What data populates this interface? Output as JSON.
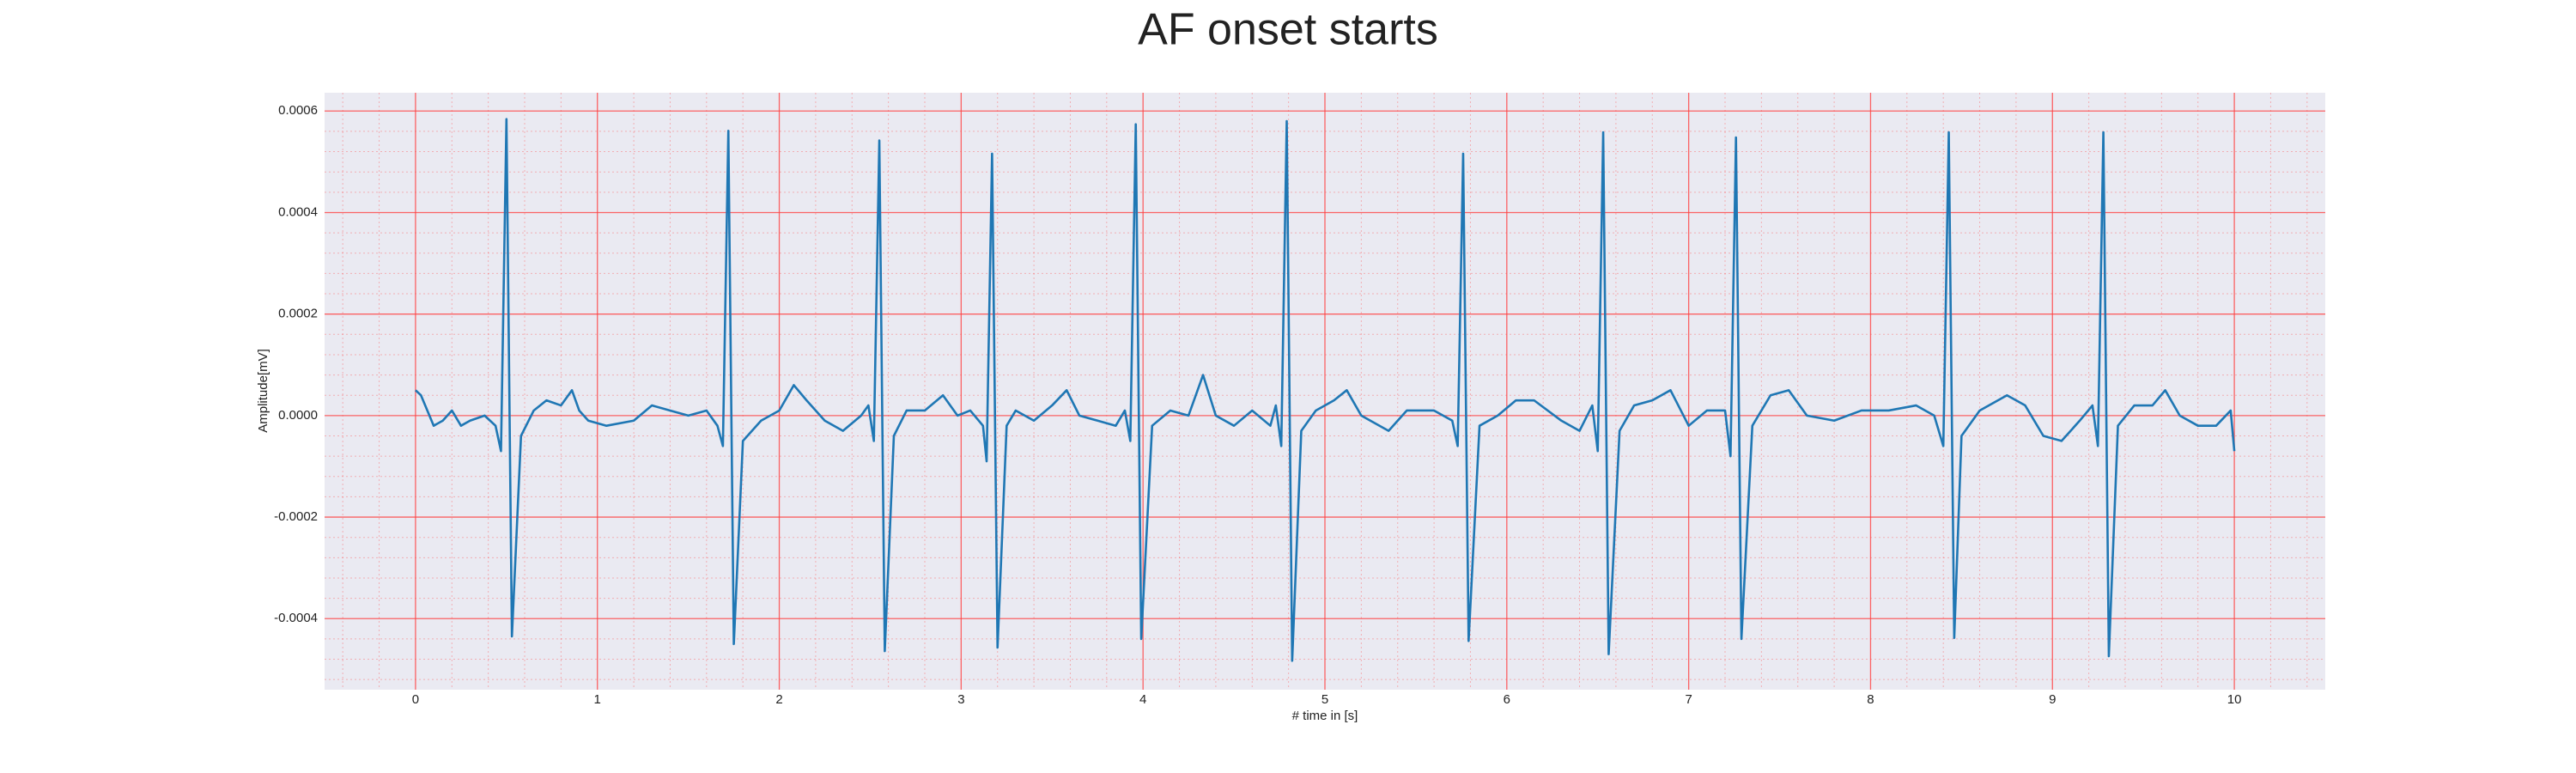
{
  "chart_data": {
    "type": "line",
    "title": "AF onset starts",
    "x_label": "# time in [s]",
    "y_label": "Amplitude[mV]",
    "xlim": [
      -0.5,
      10.5
    ],
    "xticks": [
      0,
      1,
      2,
      3,
      4,
      5,
      6,
      7,
      8,
      9,
      10
    ],
    "ylim": [
      -0.00054,
      0.000636
    ],
    "yticks": [
      -0.0004,
      -0.0002,
      {
        "value": 0,
        "label": "0.0000"
      },
      0.0002,
      0.0004,
      0.0006
    ],
    "grid": true,
    "minor_grid": true,
    "grid_color": "#ff4040",
    "background": "#eaeaf2",
    "series": [
      {
        "color": "#1f77b4",
        "x": [
          0,
          0.03,
          0.1,
          0.15,
          0.2,
          0.25,
          0.3,
          0.38,
          0.44,
          0.47,
          0.5,
          0.53,
          0.58,
          0.65,
          0.72,
          0.8,
          0.86,
          0.9,
          0.95,
          1.05,
          1.2,
          1.3,
          1.4,
          1.5,
          1.6,
          1.66,
          1.69,
          1.72,
          1.75,
          1.8,
          1.9,
          2.0,
          2.08,
          2.15,
          2.25,
          2.35,
          2.45,
          2.49,
          2.52,
          2.55,
          2.58,
          2.63,
          2.7,
          2.8,
          2.9,
          2.98,
          3.05,
          3.12,
          3.14,
          3.17,
          3.2,
          3.25,
          3.3,
          3.4,
          3.5,
          3.58,
          3.65,
          3.75,
          3.85,
          3.9,
          3.93,
          3.96,
          3.99,
          4.05,
          4.15,
          4.25,
          4.33,
          4.4,
          4.5,
          4.6,
          4.7,
          4.73,
          4.76,
          4.79,
          4.82,
          4.87,
          4.95,
          5.05,
          5.12,
          5.2,
          5.35,
          5.45,
          5.6,
          5.7,
          5.73,
          5.76,
          5.79,
          5.85,
          5.95,
          6.05,
          6.15,
          6.3,
          6.4,
          6.47,
          6.5,
          6.53,
          6.56,
          6.62,
          6.7,
          6.8,
          6.9,
          7.0,
          7.1,
          7.2,
          7.23,
          7.26,
          7.29,
          7.35,
          7.45,
          7.55,
          7.65,
          7.8,
          7.95,
          8.1,
          8.25,
          8.35,
          8.4,
          8.43,
          8.46,
          8.5,
          8.6,
          8.75,
          8.85,
          8.95,
          9.05,
          9.15,
          9.22,
          9.25,
          9.28,
          9.31,
          9.36,
          9.45,
          9.55,
          9.62,
          9.7,
          9.8,
          9.9,
          9.98,
          10.0
        ],
        "values": [
          5e-05,
          4e-05,
          -2e-05,
          -1e-05,
          1e-05,
          -2e-05,
          -1e-05,
          0,
          -2e-05,
          -7e-05,
          0.000584,
          -0.000435,
          -4e-05,
          1e-05,
          3e-05,
          2e-05,
          5e-05,
          1e-05,
          -1e-05,
          -2e-05,
          -1e-05,
          2e-05,
          1e-05,
          0,
          1e-05,
          -2e-05,
          -6e-05,
          0.000561,
          -0.00045,
          -5e-05,
          -1e-05,
          1e-05,
          6e-05,
          3e-05,
          -1e-05,
          -3e-05,
          0,
          2e-05,
          -5e-05,
          0.000542,
          -0.000464,
          -4e-05,
          1e-05,
          1e-05,
          4e-05,
          0,
          1e-05,
          -2e-05,
          -9e-05,
          0.000516,
          -0.000457,
          -2e-05,
          1e-05,
          -1e-05,
          2e-05,
          5e-05,
          0,
          -1e-05,
          -2e-05,
          1e-05,
          -5e-05,
          0.000574,
          -0.00044,
          -2e-05,
          1e-05,
          0,
          8e-05,
          0,
          -2e-05,
          1e-05,
          -2e-05,
          2e-05,
          -6e-05,
          0.00058,
          -0.000483,
          -3e-05,
          1e-05,
          3e-05,
          5e-05,
          0,
          -3e-05,
          1e-05,
          1e-05,
          -1e-05,
          -6e-05,
          0.000516,
          -0.000444,
          -2e-05,
          0,
          3e-05,
          3e-05,
          -1e-05,
          -3e-05,
          2e-05,
          -7e-05,
          0.000558,
          -0.00047,
          -3e-05,
          2e-05,
          3e-05,
          5e-05,
          -2e-05,
          1e-05,
          1e-05,
          -8e-05,
          0.000548,
          -0.00044,
          -2e-05,
          4e-05,
          5e-05,
          0,
          -1e-05,
          1e-05,
          1e-05,
          2e-05,
          0,
          -6e-05,
          0.000558,
          -0.000438,
          -4e-05,
          1e-05,
          4e-05,
          2e-05,
          -4e-05,
          -5e-05,
          -1e-05,
          2e-05,
          -6e-05,
          0.000558,
          -0.000474,
          -2e-05,
          2e-05,
          2e-05,
          5e-05,
          0,
          -2e-05,
          -2e-05,
          1e-05,
          -7e-05
        ]
      }
    ]
  }
}
